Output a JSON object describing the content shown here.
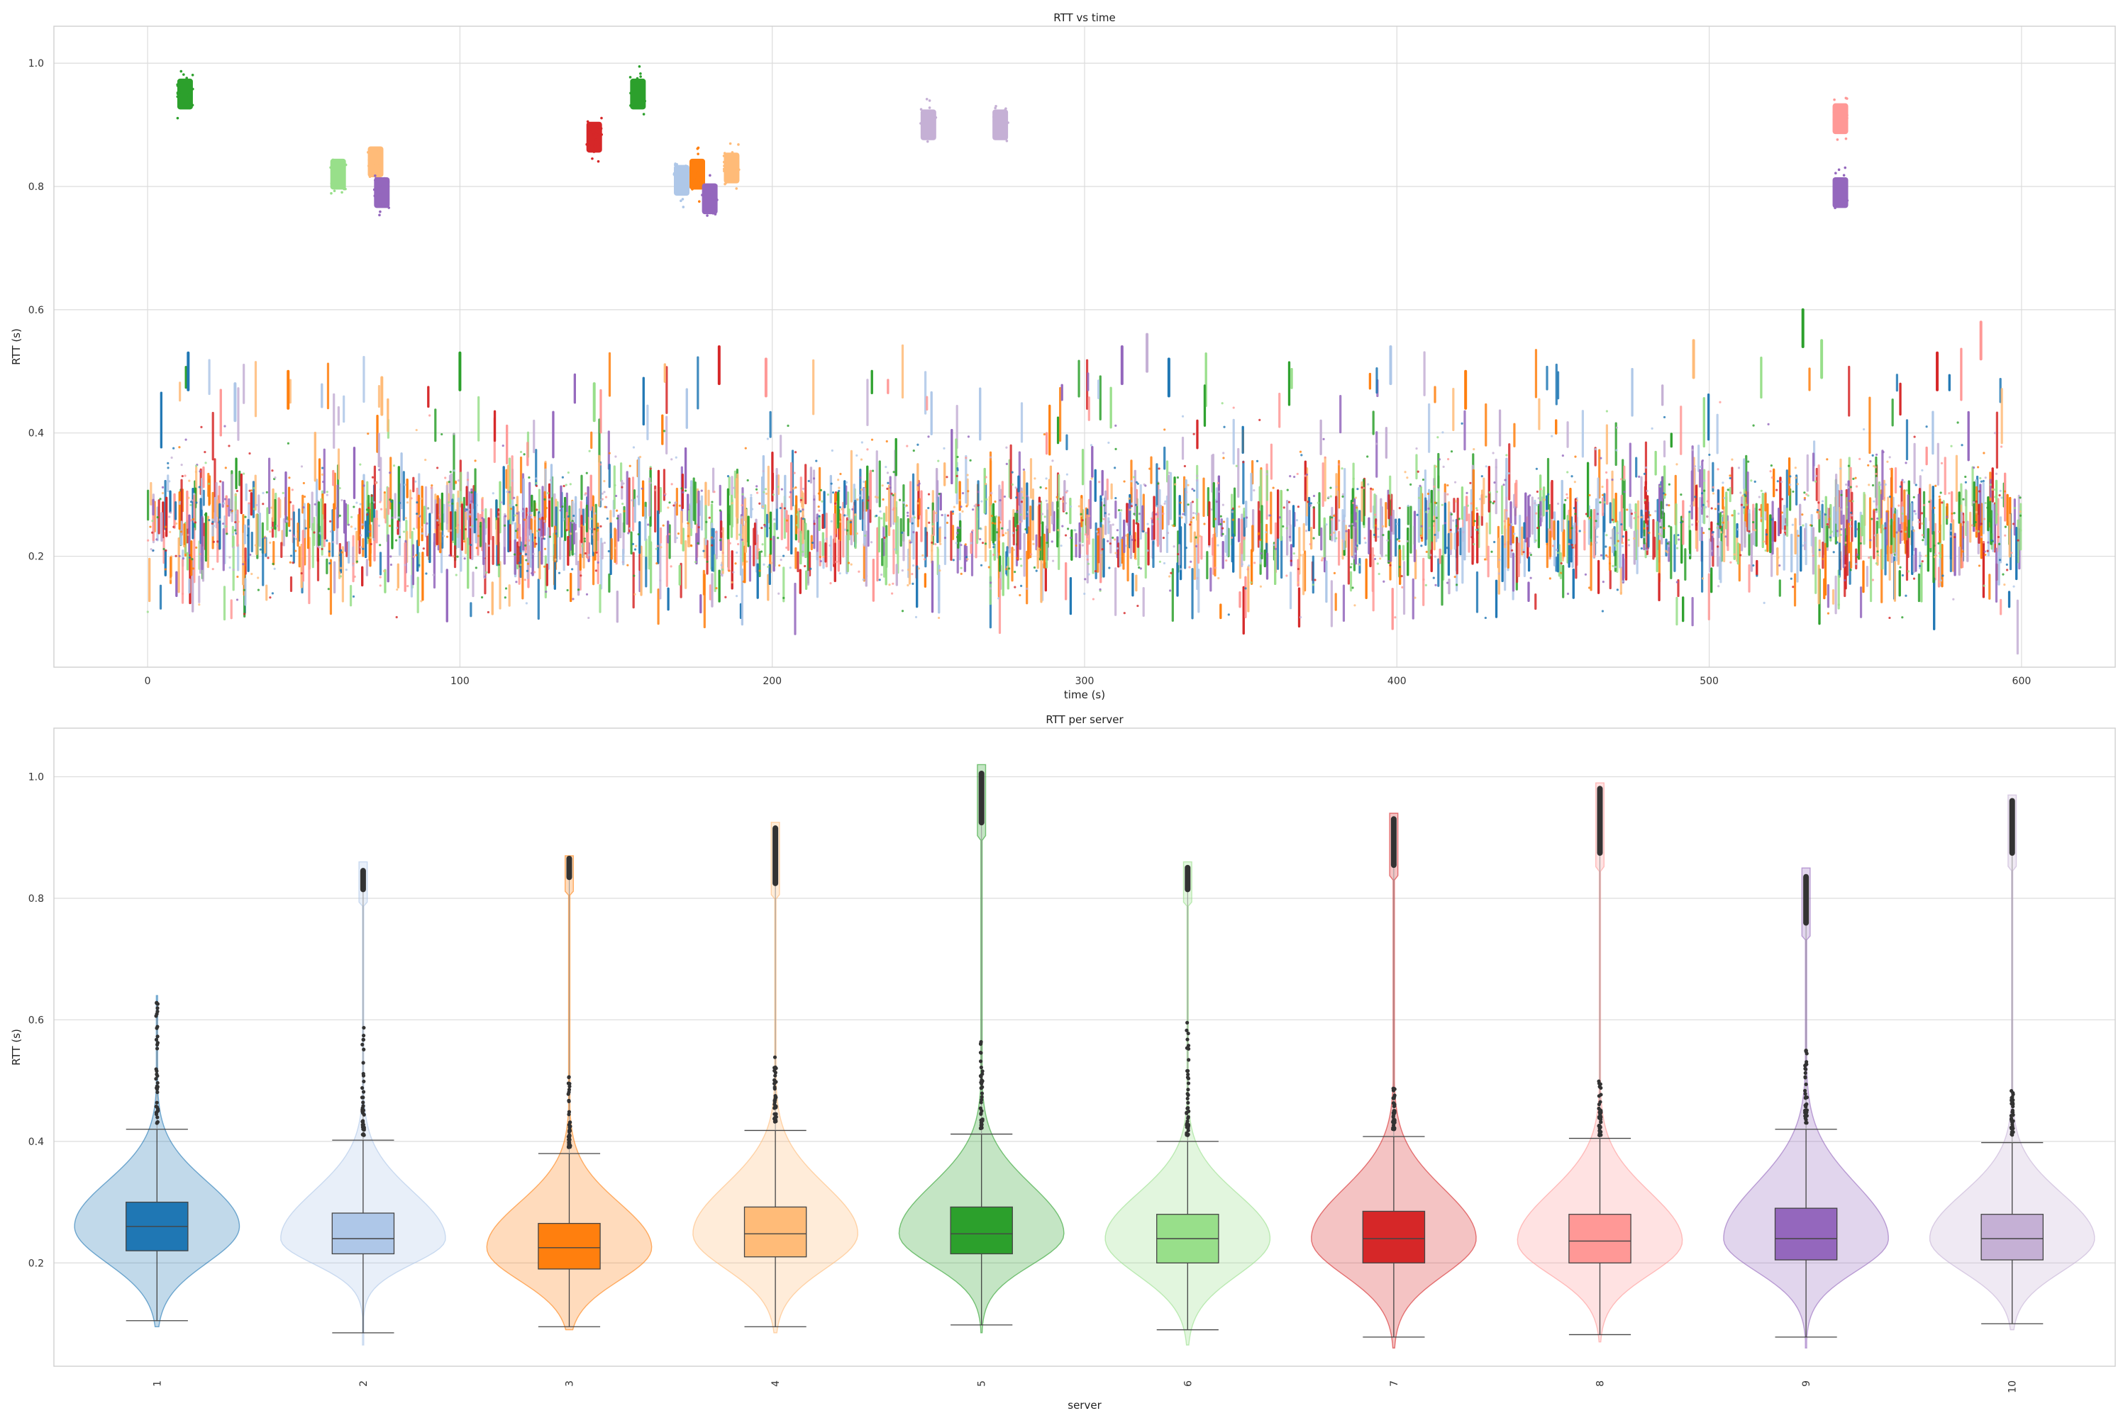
{
  "chart_data": [
    {
      "type": "scatter",
      "title": "RTT vs time",
      "xlabel": "time (s)",
      "ylabel": "RTT (s)",
      "xlim": [
        -30,
        630
      ],
      "ylim": [
        0.02,
        1.06
      ],
      "xticks": [
        "0",
        "100",
        "200",
        "300",
        "400",
        "500",
        "600"
      ],
      "xtick_values": [
        0,
        100,
        200,
        300,
        400,
        500,
        600
      ],
      "yticks": [
        "0.2",
        "0.4",
        "0.6",
        "0.8",
        "1.0"
      ],
      "ytick_values": [
        0.2,
        0.4,
        0.6,
        0.8,
        1.0
      ],
      "grid": true,
      "legend": "none",
      "baseline_band": {
        "x_range": [
          0,
          600
        ],
        "y_typical": [
          0.15,
          0.4
        ],
        "y_extreme": [
          0.07,
          0.63
        ]
      },
      "outlier_clusters": [
        {
          "x": 12,
          "y": 0.95,
          "color": "#2ca02c"
        },
        {
          "x": 61,
          "y": 0.82,
          "color": "#98df8a"
        },
        {
          "x": 73,
          "y": 0.84,
          "color": "#ffbb78"
        },
        {
          "x": 75,
          "y": 0.79,
          "color": "#9467bd"
        },
        {
          "x": 143,
          "y": 0.88,
          "color": "#d62728"
        },
        {
          "x": 157,
          "y": 0.95,
          "color": "#2ca02c"
        },
        {
          "x": 171,
          "y": 0.81,
          "color": "#aec7e8"
        },
        {
          "x": 176,
          "y": 0.82,
          "color": "#ff7f0e"
        },
        {
          "x": 180,
          "y": 0.78,
          "color": "#9467bd"
        },
        {
          "x": 187,
          "y": 0.83,
          "color": "#ffbb78"
        },
        {
          "x": 250,
          "y": 0.9,
          "color": "#c5b0d5"
        },
        {
          "x": 273,
          "y": 0.9,
          "color": "#c5b0d5"
        },
        {
          "x": 542,
          "y": 0.91,
          "color": "#ff9896"
        },
        {
          "x": 542,
          "y": 0.79,
          "color": "#9467bd"
        }
      ]
    },
    {
      "type": "violin",
      "title": "RTT per server",
      "xlabel": "server",
      "ylabel": "RTT (s)",
      "ylim": [
        0.03,
        1.08
      ],
      "categories": [
        "1",
        "2",
        "3",
        "4",
        "5",
        "6",
        "7",
        "8",
        "9",
        "10"
      ],
      "yticks": [
        "0.2",
        "0.4",
        "0.6",
        "0.8",
        "1.0"
      ],
      "ytick_values": [
        0.2,
        0.4,
        0.6,
        0.8,
        1.0
      ],
      "grid": true,
      "series": [
        {
          "category": "1",
          "color": "#1f77b4",
          "q1": 0.22,
          "median": 0.26,
          "q3": 0.3,
          "whisker_low": 0.105,
          "whisker_high": 0.42,
          "violin_min": 0.095,
          "violin_max": 0.64,
          "outliers_upper": [
            0.43,
            0.63
          ],
          "outliers_high": null
        },
        {
          "category": "2",
          "color": "#aec7e8",
          "q1": 0.215,
          "median": 0.24,
          "q3": 0.282,
          "whisker_low": 0.085,
          "whisker_high": 0.402,
          "violin_min": 0.065,
          "violin_max": 0.86,
          "outliers_upper": [
            0.41,
            0.6
          ],
          "outliers_high": [
            0.81,
            0.85
          ]
        },
        {
          "category": "3",
          "color": "#ff7f0e",
          "q1": 0.19,
          "median": 0.225,
          "q3": 0.265,
          "whisker_low": 0.095,
          "whisker_high": 0.38,
          "violin_min": 0.09,
          "violin_max": 0.87,
          "outliers_upper": [
            0.39,
            0.51
          ],
          "outliers_high": [
            0.83,
            0.87
          ]
        },
        {
          "category": "4",
          "color": "#ffbb78",
          "q1": 0.21,
          "median": 0.248,
          "q3": 0.292,
          "whisker_low": 0.095,
          "whisker_high": 0.418,
          "violin_min": 0.085,
          "violin_max": 0.925,
          "outliers_upper": [
            0.43,
            0.54
          ],
          "outliers_high": [
            0.82,
            0.92
          ]
        },
        {
          "category": "5",
          "color": "#2ca02c",
          "q1": 0.215,
          "median": 0.248,
          "q3": 0.292,
          "whisker_low": 0.098,
          "whisker_high": 0.412,
          "violin_min": 0.085,
          "violin_max": 1.02,
          "outliers_upper": [
            0.42,
            0.57
          ],
          "outliers_high": [
            0.92,
            1.01
          ]
        },
        {
          "category": "6",
          "color": "#98df8a",
          "q1": 0.2,
          "median": 0.24,
          "q3": 0.28,
          "whisker_low": 0.09,
          "whisker_high": 0.4,
          "violin_min": 0.065,
          "violin_max": 0.86,
          "outliers_upper": [
            0.41,
            0.61
          ],
          "outliers_high": [
            0.81,
            0.855
          ]
        },
        {
          "category": "7",
          "color": "#d62728",
          "q1": 0.2,
          "median": 0.24,
          "q3": 0.285,
          "whisker_low": 0.078,
          "whisker_high": 0.408,
          "violin_min": 0.06,
          "violin_max": 0.94,
          "outliers_upper": [
            0.42,
            0.49
          ],
          "outliers_high": [
            0.85,
            0.935
          ]
        },
        {
          "category": "8",
          "color": "#ff9896",
          "q1": 0.2,
          "median": 0.236,
          "q3": 0.28,
          "whisker_low": 0.082,
          "whisker_high": 0.405,
          "violin_min": 0.07,
          "violin_max": 0.99,
          "outliers_upper": [
            0.41,
            0.5
          ],
          "outliers_high": [
            0.87,
            0.985
          ]
        },
        {
          "category": "9",
          "color": "#9467bd",
          "q1": 0.205,
          "median": 0.24,
          "q3": 0.29,
          "whisker_low": 0.078,
          "whisker_high": 0.42,
          "violin_min": 0.06,
          "violin_max": 0.85,
          "outliers_upper": [
            0.43,
            0.55
          ],
          "outliers_high": [
            0.755,
            0.84
          ]
        },
        {
          "category": "10",
          "color": "#c5b0d5",
          "q1": 0.205,
          "median": 0.24,
          "q3": 0.28,
          "whisker_low": 0.1,
          "whisker_high": 0.398,
          "violin_min": 0.09,
          "violin_max": 0.97,
          "outliers_upper": [
            0.41,
            0.49
          ],
          "outliers_high": [
            0.87,
            0.965
          ]
        }
      ]
    }
  ]
}
